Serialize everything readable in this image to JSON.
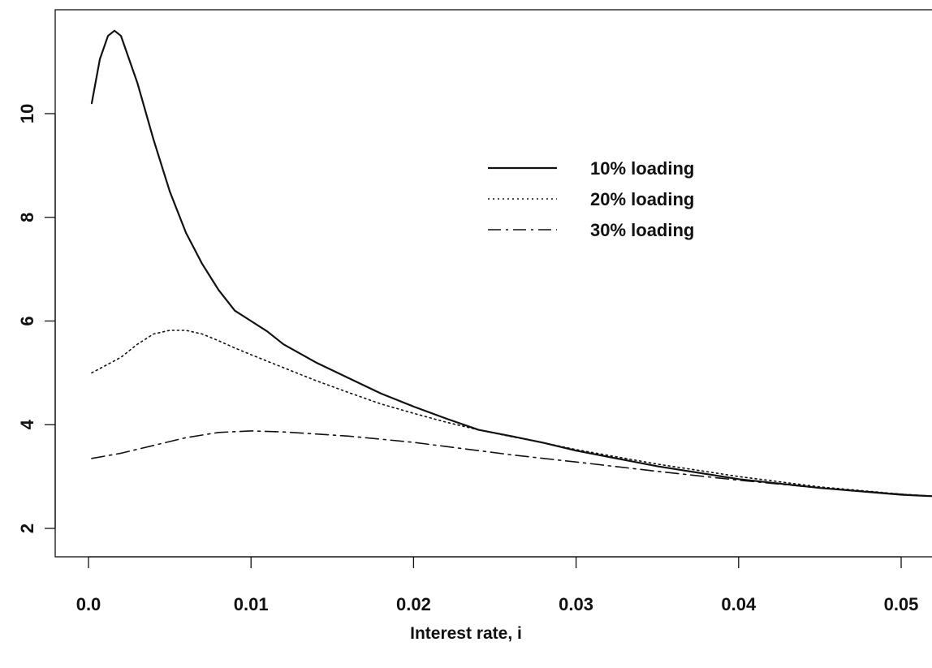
{
  "chart_data": {
    "type": "line",
    "title": "",
    "xlabel": "Interest rate, i",
    "ylabel": "",
    "xlim": [
      0.0,
      0.052
    ],
    "ylim": [
      1.5,
      12.2
    ],
    "x_ticks": [
      0.0,
      0.01,
      0.02,
      0.03,
      0.04,
      0.05
    ],
    "x_tick_labels": [
      "0.0",
      "0.01",
      "0.02",
      "0.03",
      "0.04",
      "0.05"
    ],
    "y_ticks": [
      2,
      4,
      6,
      8,
      10
    ],
    "y_tick_labels": [
      "2",
      "4",
      "6",
      "8",
      "10"
    ],
    "grid": false,
    "legend_position": "upper-right",
    "series": [
      {
        "name": "10% loading",
        "line_style": "solid",
        "x": [
          0.0002,
          0.0007,
          0.0012,
          0.0016,
          0.002,
          0.003,
          0.004,
          0.005,
          0.006,
          0.007,
          0.008,
          0.009,
          0.01,
          0.011,
          0.012,
          0.014,
          0.016,
          0.018,
          0.02,
          0.022,
          0.024,
          0.026,
          0.028,
          0.03,
          0.035,
          0.04,
          0.045,
          0.05,
          0.052
        ],
        "y": [
          10.2,
          11.05,
          11.5,
          11.6,
          11.5,
          10.6,
          9.5,
          8.5,
          7.7,
          7.1,
          6.6,
          6.2,
          6.0,
          5.8,
          5.55,
          5.2,
          4.9,
          4.6,
          4.35,
          4.12,
          3.9,
          3.78,
          3.65,
          3.5,
          3.2,
          2.95,
          2.78,
          2.65,
          2.62
        ]
      },
      {
        "name": "20% loading",
        "line_style": "dotted",
        "x": [
          0.0002,
          0.002,
          0.003,
          0.004,
          0.005,
          0.006,
          0.007,
          0.008,
          0.009,
          0.01,
          0.012,
          0.014,
          0.016,
          0.018,
          0.02,
          0.022,
          0.024,
          0.026,
          0.028,
          0.03,
          0.035,
          0.04,
          0.045,
          0.05,
          0.052
        ],
        "y": [
          5.0,
          5.3,
          5.55,
          5.75,
          5.82,
          5.82,
          5.75,
          5.62,
          5.48,
          5.35,
          5.1,
          4.85,
          4.62,
          4.4,
          4.22,
          4.05,
          3.9,
          3.77,
          3.65,
          3.52,
          3.24,
          3.0,
          2.8,
          2.66,
          2.62
        ]
      },
      {
        "name": "30% loading",
        "line_style": "dashdot",
        "x": [
          0.0002,
          0.002,
          0.004,
          0.006,
          0.008,
          0.01,
          0.012,
          0.014,
          0.016,
          0.018,
          0.02,
          0.022,
          0.024,
          0.026,
          0.028,
          0.03,
          0.035,
          0.04,
          0.045,
          0.05,
          0.052
        ],
        "y": [
          3.35,
          3.45,
          3.6,
          3.75,
          3.85,
          3.88,
          3.86,
          3.82,
          3.78,
          3.72,
          3.66,
          3.58,
          3.5,
          3.42,
          3.35,
          3.28,
          3.1,
          2.93,
          2.78,
          2.66,
          2.62
        ]
      }
    ]
  }
}
